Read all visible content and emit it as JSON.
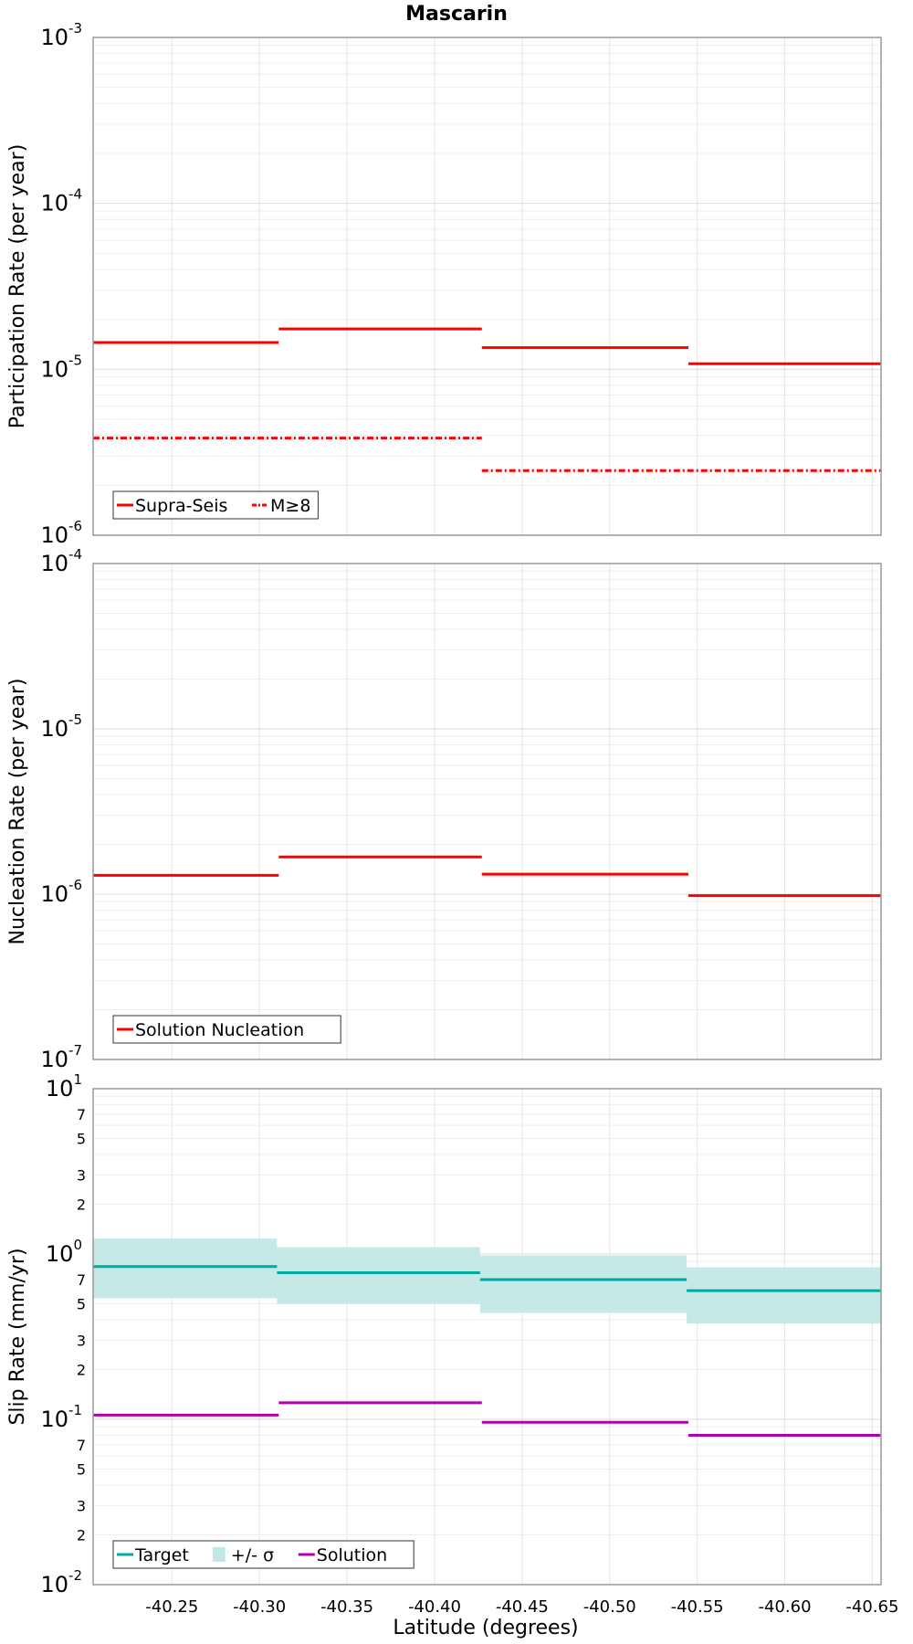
{
  "chart_data": [
    {
      "type": "line",
      "title": "Mascarin",
      "xlabel": "",
      "ylabel": "Participation Rate (per year)",
      "yscale": "log",
      "ylim": [
        1e-06,
        0.001
      ],
      "xlim": [
        -40.205,
        -40.655
      ],
      "series": [
        {
          "name": "Supra-Seis",
          "color": "#ff0000",
          "style": "solid",
          "steps": [
            [
              -40.205,
              -40.311,
              1.45e-05
            ],
            [
              -40.311,
              -40.427,
              1.75e-05
            ],
            [
              -40.427,
              -40.545,
              1.35e-05
            ],
            [
              -40.545,
              -40.655,
              1.08e-05
            ]
          ]
        },
        {
          "name": "M≥8",
          "color": "#ff0000",
          "style": "dashdot",
          "steps": [
            [
              -40.205,
              -40.427,
              3.85e-06
            ],
            [
              -40.427,
              -40.655,
              2.45e-06
            ]
          ]
        }
      ],
      "legend": [
        "Supra-Seis",
        "M≥8"
      ],
      "legend_position": "bottom-left",
      "grid": true
    },
    {
      "type": "line",
      "xlabel": "",
      "ylabel": "Nucleation Rate (per year)",
      "yscale": "log",
      "ylim": [
        1e-07,
        0.0001
      ],
      "xlim": [
        -40.205,
        -40.655
      ],
      "series": [
        {
          "name": "Solution Nucleation",
          "color": "#ff0000",
          "style": "solid",
          "steps": [
            [
              -40.205,
              -40.311,
              1.3e-06
            ],
            [
              -40.311,
              -40.427,
              1.68e-06
            ],
            [
              -40.427,
              -40.545,
              1.32e-06
            ],
            [
              -40.545,
              -40.655,
              9.8e-07
            ]
          ]
        }
      ],
      "legend": [
        "Solution Nucleation"
      ],
      "legend_position": "bottom-left",
      "grid": true
    },
    {
      "type": "line",
      "xlabel": "Latitude (degrees)",
      "ylabel": "Slip Rate (mm/yr)",
      "yscale": "log",
      "ylim": [
        0.01,
        10
      ],
      "xlim": [
        -40.205,
        -40.655
      ],
      "x_ticks": [
        -40.25,
        -40.3,
        -40.35,
        -40.4,
        -40.45,
        -40.5,
        -40.55,
        -40.6,
        -40.65
      ],
      "x_tick_labels": [
        "-40.25",
        "-40.30",
        "-40.35",
        "-40.40",
        "-40.45",
        "-40.50",
        "-40.55",
        "-40.60",
        "-40.65"
      ],
      "minor_tick_labels": [
        "7",
        "5",
        "3",
        "2"
      ],
      "series": [
        {
          "name": "Target",
          "color": "#00aaa0",
          "style": "solid",
          "steps": [
            [
              -40.205,
              -40.31,
              0.84
            ],
            [
              -40.31,
              -40.426,
              0.77
            ],
            [
              -40.426,
              -40.544,
              0.7
            ],
            [
              -40.544,
              -40.655,
              0.6
            ]
          ]
        },
        {
          "name": "+/- σ",
          "color": "#c2e8e6",
          "style": "band",
          "steps": [
            [
              -40.205,
              -40.31,
              0.54,
              1.24
            ],
            [
              -40.31,
              -40.426,
              0.5,
              1.1
            ],
            [
              -40.426,
              -40.544,
              0.44,
              0.98
            ],
            [
              -40.544,
              -40.655,
              0.38,
              0.83
            ]
          ]
        },
        {
          "name": "Solution",
          "color": "#b000b0",
          "style": "solid",
          "steps": [
            [
              -40.205,
              -40.311,
              0.106
            ],
            [
              -40.311,
              -40.427,
              0.126
            ],
            [
              -40.427,
              -40.545,
              0.096
            ],
            [
              -40.545,
              -40.655,
              0.08
            ]
          ]
        }
      ],
      "legend": [
        "Target",
        "+/- σ",
        "Solution"
      ],
      "legend_position": "bottom-left",
      "grid": true
    }
  ]
}
